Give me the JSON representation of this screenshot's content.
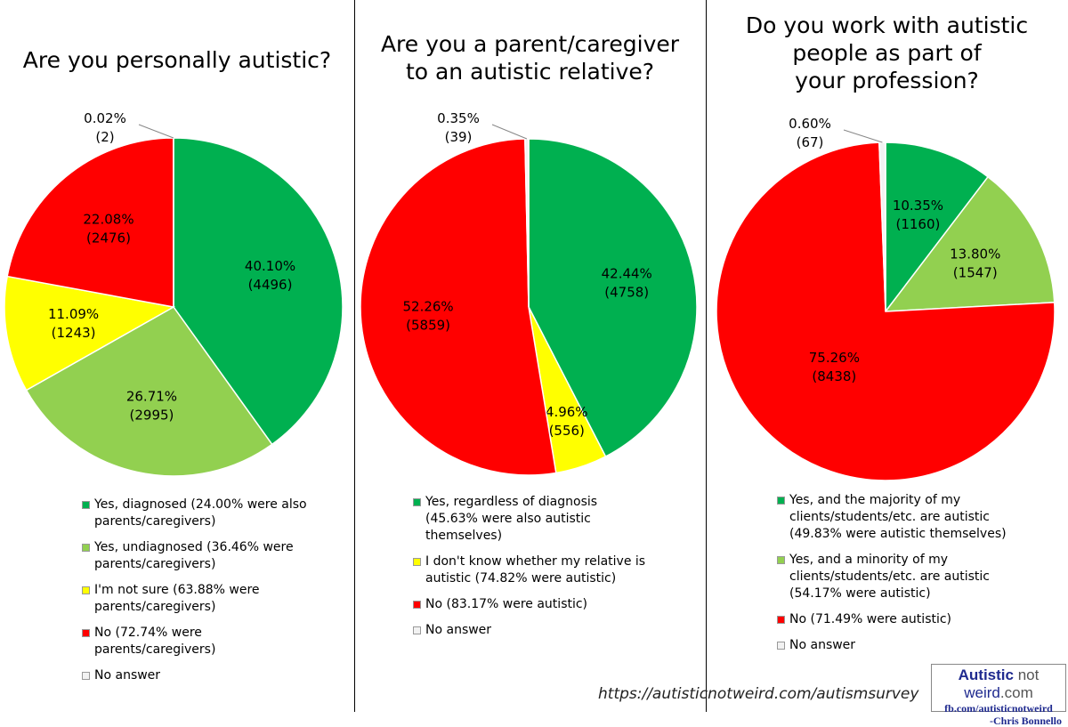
{
  "colors": {
    "dark_green": "#00B050",
    "light_green": "#92D050",
    "yellow": "#FFFF00",
    "red": "#FF0000",
    "no_answer": "#F2F2F2"
  },
  "chart_data": [
    {
      "type": "pie",
      "title": "Are you personally autistic?",
      "start": "12 o'clock, clockwise",
      "slices": [
        {
          "label": "Yes, diagnosed (24.00% were also parents/caregivers)",
          "percent": "40.10%",
          "count": "(4496)",
          "value": 40.1,
          "color": "#00B050"
        },
        {
          "label": "Yes, undiagnosed (36.46% were parents/caregivers)",
          "percent": "26.71%",
          "count": "(2995)",
          "value": 26.71,
          "color": "#92D050"
        },
        {
          "label": "I'm not sure (63.88% were parents/caregivers)",
          "percent": "11.09%",
          "count": "(1243)",
          "value": 11.09,
          "color": "#FFFF00"
        },
        {
          "label": "No (72.74% were parents/caregivers)",
          "percent": "22.08%",
          "count": "(2476)",
          "value": 22.08,
          "color": "#FF0000"
        },
        {
          "label": "No answer",
          "percent": "0.02%",
          "count": "(2)",
          "value": 0.02,
          "color": "#F2F2F2"
        }
      ]
    },
    {
      "type": "pie",
      "title": "Are you a parent/caregiver\nto an autistic relative?",
      "start": "12 o'clock, clockwise",
      "slices": [
        {
          "label": "Yes, regardless of diagnosis (45.63% were also autistic themselves)",
          "percent": "42.44%",
          "count": "(4758)",
          "value": 42.44,
          "color": "#00B050"
        },
        {
          "label": "I don't know whether my relative is autistic (74.82% were autistic)",
          "percent": "4.96%",
          "count": "(556)",
          "value": 4.96,
          "color": "#FFFF00"
        },
        {
          "label": "No (83.17% were autistic)",
          "percent": "52.26%",
          "count": "(5859)",
          "value": 52.26,
          "color": "#FF0000"
        },
        {
          "label": "No answer",
          "percent": "0.35%",
          "count": "(39)",
          "value": 0.35,
          "color": "#F2F2F2"
        }
      ]
    },
    {
      "type": "pie",
      "title": "Do you work with autistic\npeople as part of\nyour profession?",
      "start": "12 o'clock, clockwise",
      "slices": [
        {
          "label": "Yes, and the majority of my clients/students/etc. are autistic (49.83% were autistic themselves)",
          "percent": "10.35%",
          "count": "(1160)",
          "value": 10.35,
          "color": "#00B050"
        },
        {
          "label": "Yes, and a minority of my clients/students/etc. are autistic (54.17% were autistic)",
          "percent": "13.80%",
          "count": "(1547)",
          "value": 13.8,
          "color": "#92D050"
        },
        {
          "label": "No (71.49% were autistic)",
          "percent": "75.26%",
          "count": "(8438)",
          "value": 75.26,
          "color": "#FF0000"
        },
        {
          "label": "No answer",
          "percent": "0.60%",
          "count": "(67)",
          "value": 0.6,
          "color": "#F2F2F2"
        }
      ]
    }
  ],
  "footer": {
    "url": "https://autisticnotweird.com/autismsurvey",
    "logo_text": "Autisticnot weird.com fb.com/autisticnotweird -Chris Bonnello"
  }
}
